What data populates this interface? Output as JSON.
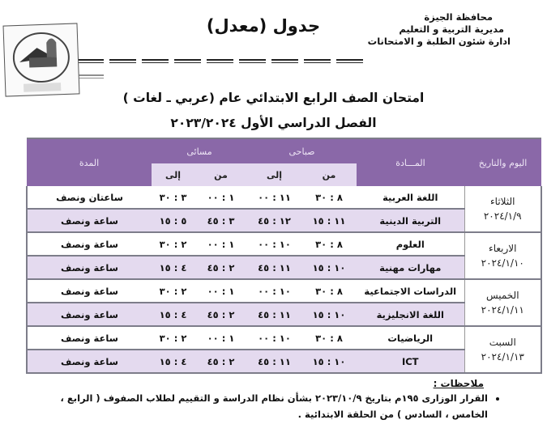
{
  "header": {
    "org_lines": [
      "محافظة الجيزة",
      "مديرية التربية و التعليم",
      "ادارة شئون الطلبة و الامتحانات"
    ],
    "doc_title": "جدول (معدل)",
    "logo_text": "شئون صحية"
  },
  "title": {
    "line1": "امتحان الصف الرابع الابتدائي عام (عربي ـ لغات )",
    "line2": "الفصل الدراسي الأول ٢٠٢٣/٢٠٢٤"
  },
  "table": {
    "headers": {
      "day_date": "اليوم والتاريخ",
      "subject": "المـــادة",
      "morning": "صباحى",
      "evening": "مسائى",
      "from": "من",
      "to": "إلى",
      "duration": "المدة"
    },
    "days": [
      {
        "day": "الثلاثاء",
        "date": "٢٠٢٤/١/٩",
        "rows": [
          {
            "subject": "اللغة العربية",
            "m_from": "٨ : ٣٠",
            "m_to": "١١ : ٠٠",
            "e_from": "١ : ٠٠",
            "e_to": "٣ : ٣٠",
            "duration": "ساعتان ونصف"
          },
          {
            "subject": "التربية الدينية",
            "m_from": "١١ : ١٥",
            "m_to": "١٢ : ٤٥",
            "e_from": "٣ : ٤٥",
            "e_to": "٥ : ١٥",
            "duration": "ساعة ونصف"
          }
        ]
      },
      {
        "day": "الاربعاء",
        "date": "٢٠٢٤/١/١٠",
        "rows": [
          {
            "subject": "العلوم",
            "m_from": "٨ : ٣٠",
            "m_to": "١٠ : ٠٠",
            "e_from": "١ : ٠٠",
            "e_to": "٢ : ٣٠",
            "duration": "ساعة ونصف"
          },
          {
            "subject": "مهارات مهنية",
            "m_from": "١٠ : ١٥",
            "m_to": "١١ : ٤٥",
            "e_from": "٢ : ٤٥",
            "e_to": "٤ : ١٥",
            "duration": "ساعة ونصف"
          }
        ]
      },
      {
        "day": "الخميس",
        "date": "٢٠٢٤/١/١١",
        "rows": [
          {
            "subject": "الدراسات الاجتماعية",
            "m_from": "٨ : ٣٠",
            "m_to": "١٠ : ٠٠",
            "e_from": "١ : ٠٠",
            "e_to": "٢ : ٣٠",
            "duration": "ساعة ونصف"
          },
          {
            "subject": "اللغة الانجليزية",
            "m_from": "١٠ : ١٥",
            "m_to": "١١ : ٤٥",
            "e_from": "٢ : ٤٥",
            "e_to": "٤ : ١٥",
            "duration": "ساعة ونصف"
          }
        ]
      },
      {
        "day": "السبت",
        "date": "٢٠٢٤/١/١٣",
        "rows": [
          {
            "subject": "الرياضيات",
            "m_from": "٨ : ٣٠",
            "m_to": "١٠ : ٠٠",
            "e_from": "١ : ٠٠",
            "e_to": "٢ : ٣٠",
            "duration": "ساعة ونصف"
          },
          {
            "subject": "ICT",
            "m_from": "١٠ : ١٥",
            "m_to": "١١ : ٤٥",
            "e_from": "٢ : ٤٥",
            "e_to": "٤ : ١٥",
            "duration": "ساعة ونصف"
          }
        ]
      }
    ]
  },
  "notes": {
    "title": "ملاحظات :",
    "items": [
      "القرار الوزارى ١٩٥م  بتاريخ ٢٠٢٣/١٠/٩ بشأن نظام الدراسة و التقييم لطلاب الصفوف ( الرابع ، الخامس ، السادس ) من الحلقة الابتدائية ."
    ]
  },
  "colors": {
    "header_purple": "#8a68a8",
    "row_lavender": "#e4daef"
  }
}
